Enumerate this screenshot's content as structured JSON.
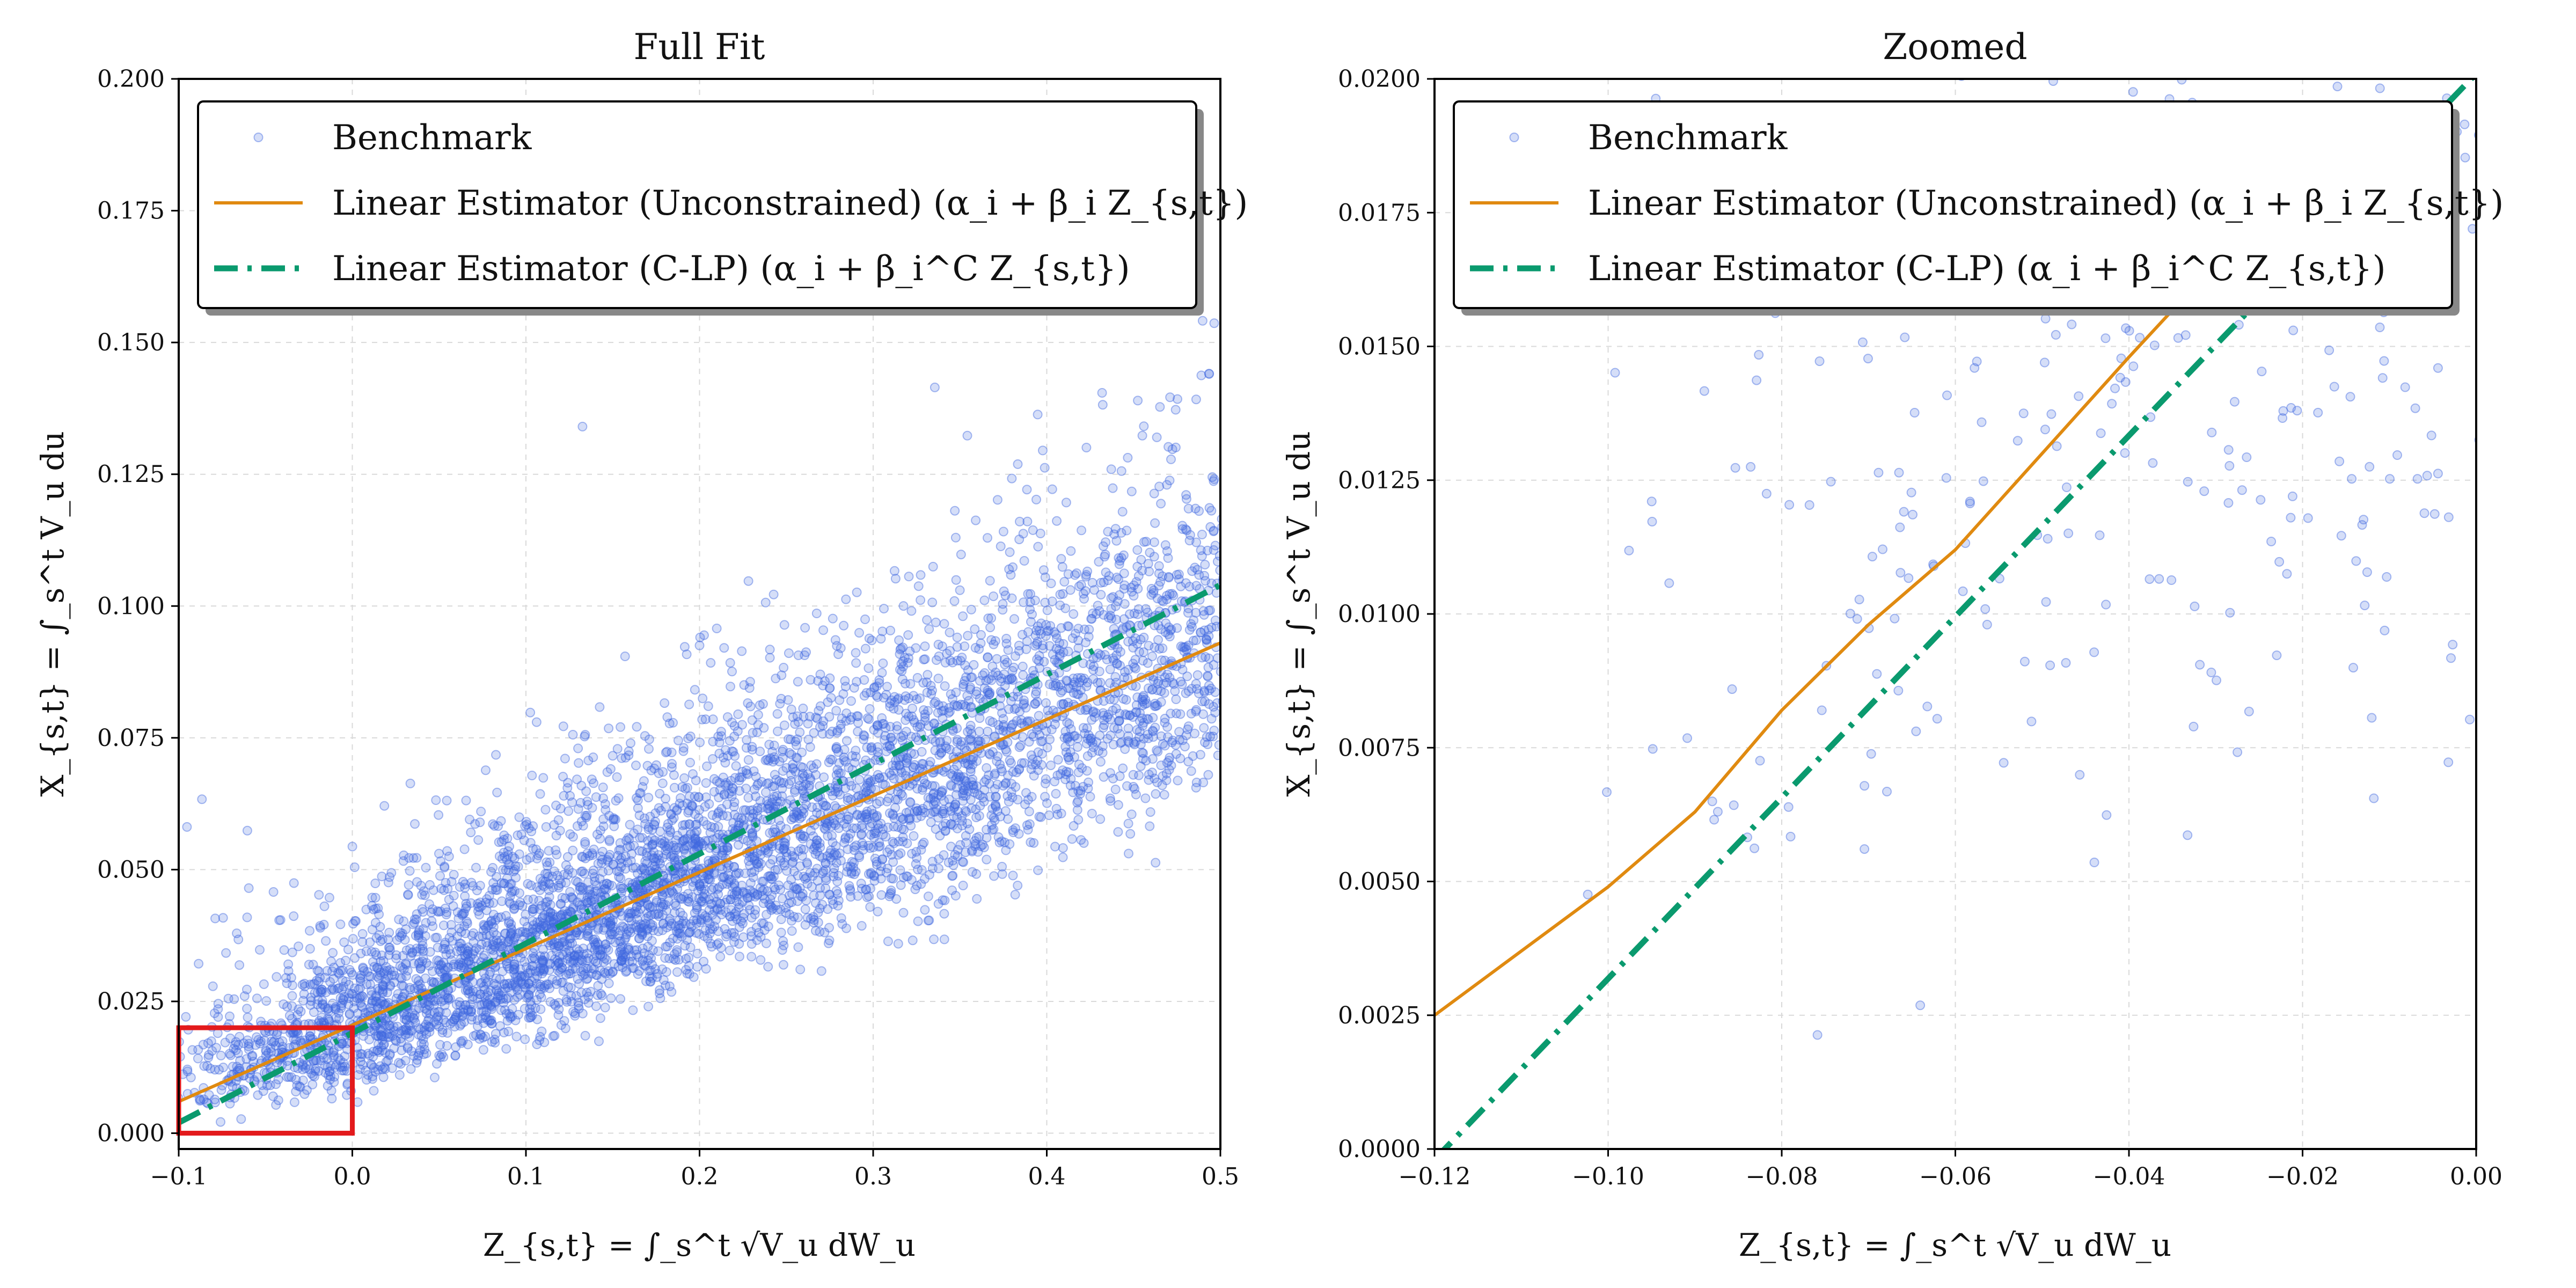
{
  "chart_data": [
    {
      "type": "scatter",
      "title": "Full Fit",
      "xlabel": "Z_{s,t} = ∫_s^t √V_u dW_u",
      "ylabel": "X_{s,t} = ∫_s^t V_u du",
      "xlim": [
        -0.1,
        0.5
      ],
      "ylim": [
        -0.003,
        0.2
      ],
      "xticks": [
        "−0.1",
        "0.0",
        "0.1",
        "0.2",
        "0.3",
        "0.4",
        "0.5"
      ],
      "yticks": [
        "0.000",
        "0.025",
        "0.050",
        "0.075",
        "0.100",
        "0.125",
        "0.150",
        "0.175",
        "0.200"
      ],
      "grid": true,
      "legend_position": "top-left",
      "series": [
        {
          "name": "Benchmark",
          "kind": "scatter",
          "color": "#4169e1"
        },
        {
          "name": "Linear Estimator (Unconstrained) (α_i + β_i Z_{s,t})",
          "kind": "line",
          "color": "#e08a10",
          "x": [
            -0.1,
            0.5
          ],
          "y": [
            0.006,
            0.093
          ]
        },
        {
          "name": "Linear Estimator (C-LP) (α_i + β_i^C Z_{s,t})",
          "kind": "line",
          "style": "dash-dot",
          "color": "#0a9a6e",
          "x": [
            -0.1,
            0.5
          ],
          "y": [
            0.002,
            0.104
          ]
        }
      ],
      "annotations": [
        {
          "type": "rectangle",
          "color": "#e31a1c",
          "x": [
            -0.1,
            0.0
          ],
          "y": [
            0.0,
            0.02
          ]
        }
      ]
    },
    {
      "type": "scatter",
      "title": "Zoomed",
      "xlabel": "Z_{s,t} = ∫_s^t √V_u dW_u",
      "ylabel": "X_{s,t} = ∫_s^t V_u du",
      "xlim": [
        -0.12,
        0.0
      ],
      "ylim": [
        0.0,
        0.02
      ],
      "xticks": [
        "−0.12",
        "−0.10",
        "−0.08",
        "−0.06",
        "−0.04",
        "−0.02",
        "0.00"
      ],
      "yticks": [
        "0.0000",
        "0.0025",
        "0.0050",
        "0.0075",
        "0.0100",
        "0.0125",
        "0.0150",
        "0.0175",
        "0.0200"
      ],
      "grid": true,
      "legend_position": "top-left",
      "series": [
        {
          "name": "Benchmark",
          "kind": "scatter",
          "color": "#4169e1"
        },
        {
          "name": "Linear Estimator (Unconstrained) (α_i + β_i Z_{s,t})",
          "kind": "line",
          "color": "#e08a10",
          "x": [
            -0.12,
            -0.1,
            -0.09,
            -0.08,
            -0.07,
            -0.06,
            -0.05,
            -0.04,
            -0.032
          ],
          "y": [
            0.0025,
            0.0049,
            0.0063,
            0.0082,
            0.0098,
            0.0112,
            0.013,
            0.0148,
            0.0162
          ]
        },
        {
          "name": "Linear Estimator (C-LP) (α_i + β_i^C Z_{s,t})",
          "kind": "line",
          "style": "dash-dot",
          "color": "#0a9a6e",
          "x": [
            -0.12,
            0.0
          ],
          "y": [
            -0.0002,
            0.0201
          ]
        }
      ]
    }
  ]
}
